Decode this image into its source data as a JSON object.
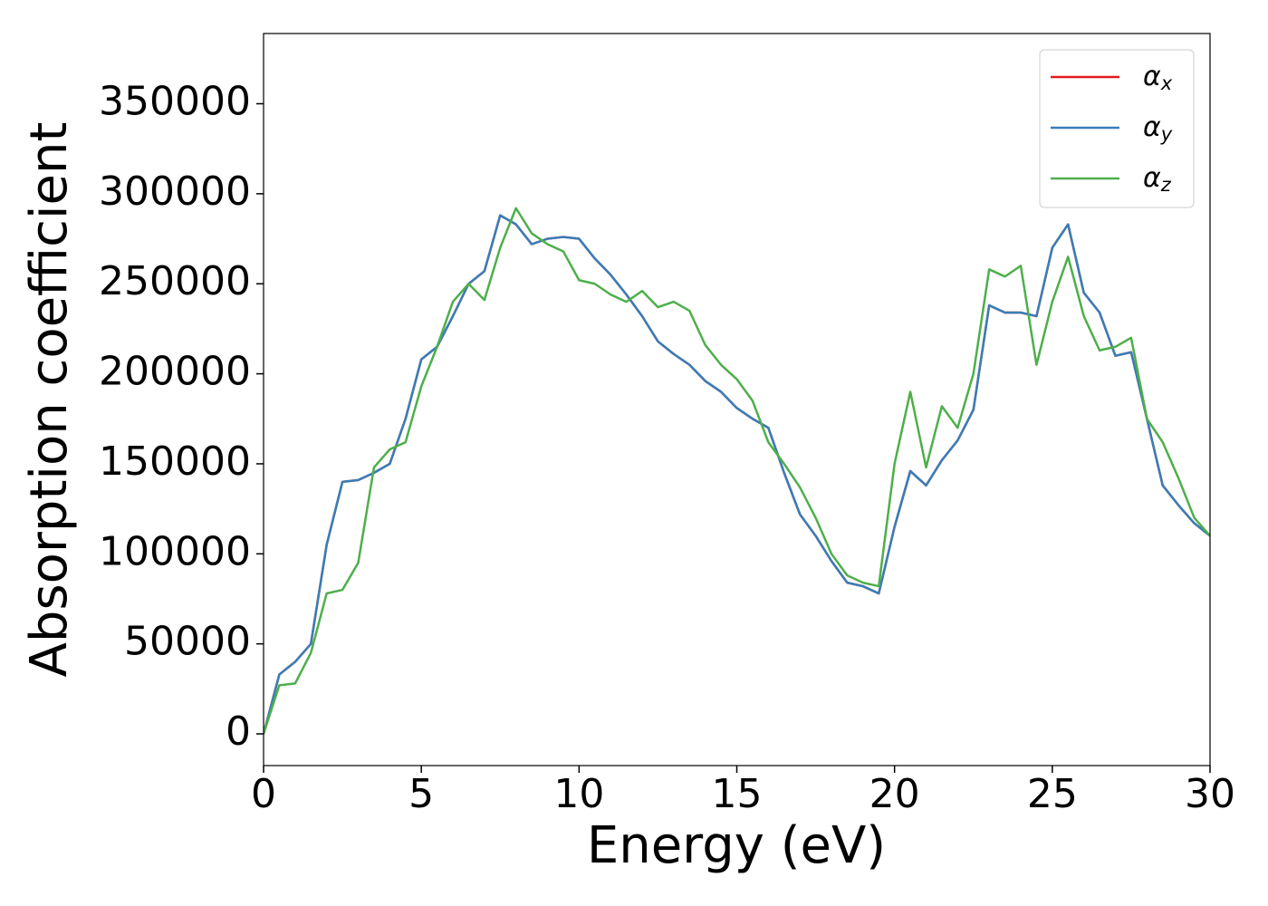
{
  "chart_data": {
    "type": "line",
    "xlabel": "Energy (eV)",
    "ylabel": "Absorption coefficient",
    "x": [
      0,
      0.5,
      1,
      1.5,
      2,
      2.5,
      3,
      3.5,
      4,
      4.5,
      5,
      5.5,
      6,
      6.5,
      7,
      7.5,
      8,
      8.5,
      9,
      9.5,
      10,
      10.5,
      11,
      11.5,
      12,
      12.5,
      13,
      13.5,
      14,
      14.5,
      15,
      15.5,
      16,
      16.5,
      17,
      17.5,
      18,
      18.5,
      19,
      19.5,
      20,
      20.5,
      21,
      21.5,
      22,
      22.5,
      23,
      23.5,
      24,
      24.5,
      25,
      25.5,
      26,
      26.5,
      27,
      27.5,
      28,
      28.5,
      29,
      29.5,
      30
    ],
    "series": [
      {
        "name": "αx",
        "color": "#e41a1c",
        "values": [
          0,
          33000,
          40000,
          50000,
          105000,
          140000,
          141000,
          145000,
          150000,
          175000,
          208000,
          215000,
          232000,
          250000,
          257000,
          288000,
          283000,
          272000,
          275000,
          276000,
          275000,
          264000,
          255000,
          244000,
          232000,
          218000,
          211000,
          205000,
          196000,
          190000,
          181000,
          175000,
          170000,
          145000,
          122000,
          110000,
          96000,
          84000,
          82000,
          78000,
          115000,
          146000,
          138000,
          152000,
          163000,
          180000,
          238000,
          234000,
          234000,
          232000,
          270000,
          283000,
          245000,
          234000,
          210000,
          212000,
          175000,
          138000,
          127000,
          117000,
          110000
        ]
      },
      {
        "name": "αy",
        "color": "#377eb8",
        "values": [
          0,
          33000,
          40000,
          50000,
          105000,
          140000,
          141000,
          145000,
          150000,
          175000,
          208000,
          215000,
          232000,
          250000,
          257000,
          288000,
          283000,
          272000,
          275000,
          276000,
          275000,
          264000,
          255000,
          244000,
          232000,
          218000,
          211000,
          205000,
          196000,
          190000,
          181000,
          175000,
          170000,
          145000,
          122000,
          110000,
          96000,
          84000,
          82000,
          78000,
          115000,
          146000,
          138000,
          152000,
          163000,
          180000,
          238000,
          234000,
          234000,
          232000,
          270000,
          283000,
          245000,
          234000,
          210000,
          212000,
          175000,
          138000,
          127000,
          117000,
          110000
        ]
      },
      {
        "name": "αz",
        "color": "#4daf4a",
        "values": [
          0,
          27000,
          28000,
          45000,
          78000,
          80000,
          95000,
          148000,
          158000,
          162000,
          193000,
          215000,
          240000,
          250000,
          241000,
          270000,
          292000,
          278000,
          272000,
          268000,
          252000,
          250000,
          244000,
          240000,
          246000,
          237000,
          240000,
          235000,
          216000,
          205000,
          197000,
          185000,
          162000,
          150000,
          137000,
          120000,
          100000,
          88000,
          84000,
          82000,
          150000,
          190000,
          148000,
          182000,
          170000,
          200000,
          258000,
          254000,
          260000,
          205000,
          240000,
          265000,
          232000,
          213000,
          215000,
          220000,
          175000,
          162000,
          142000,
          120000,
          110000
        ]
      }
    ],
    "xlim": [
      0,
      30
    ],
    "xticks": [
      0,
      5,
      10,
      15,
      20,
      25,
      30
    ],
    "ylim": [
      -17600,
      389000
    ],
    "yticks": [
      0,
      50000,
      100000,
      150000,
      200000,
      250000,
      300000,
      350000
    ],
    "grid": false,
    "legend": "upper right"
  }
}
